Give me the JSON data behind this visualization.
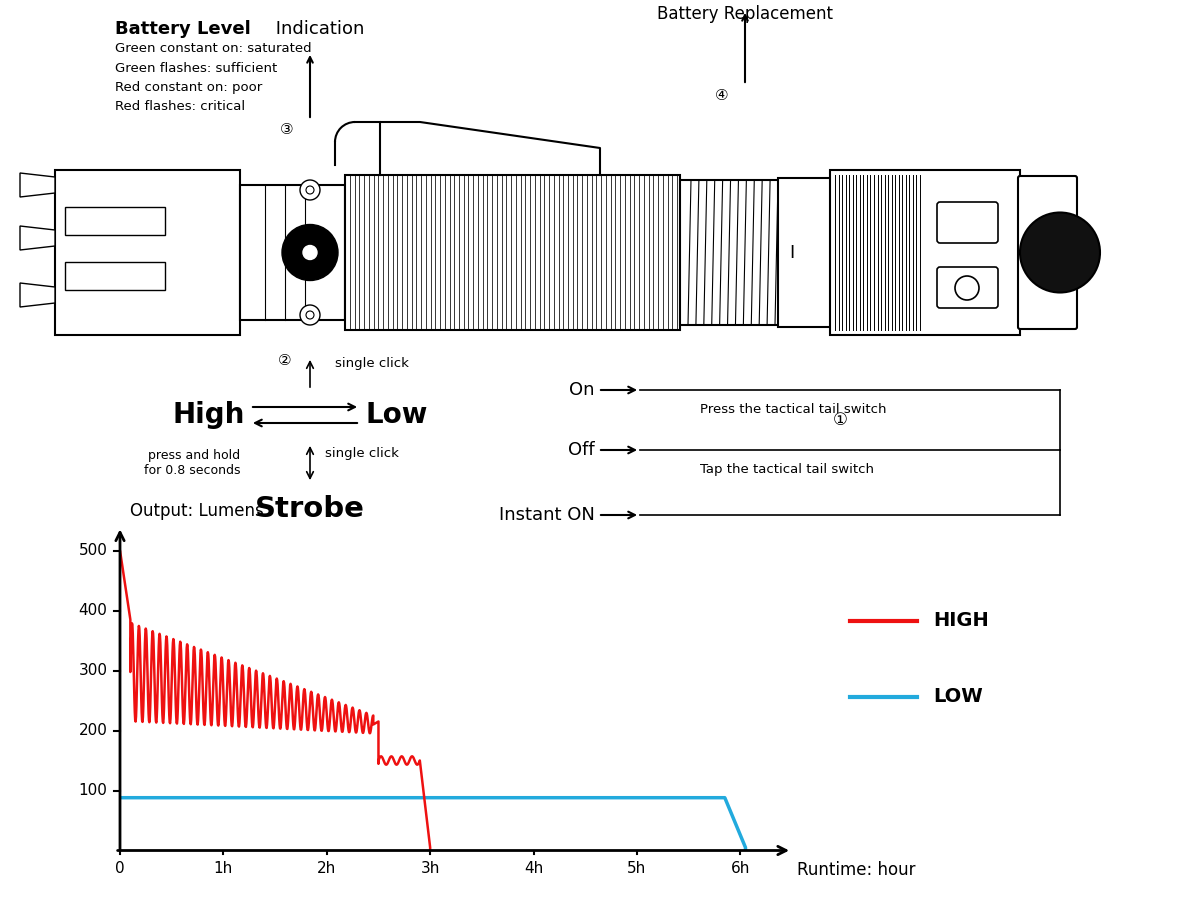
{
  "bg_color": "#ffffff",
  "chart_title_y": "Output: Lumens",
  "chart_title_x": "Runtime: hour",
  "high_color": "#ee1111",
  "low_color": "#22aadd",
  "high_label": "HIGH",
  "low_label": "LOW",
  "y_ticks": [
    100,
    200,
    300,
    400,
    500
  ],
  "x_ticks": [
    0,
    1,
    2,
    3,
    4,
    5,
    6
  ],
  "x_tick_labels": [
    "0",
    "1h",
    "2h",
    "3h",
    "4h",
    "5h",
    "6h"
  ],
  "ylim": [
    0,
    540
  ],
  "xlim": [
    0,
    6.5
  ],
  "battery_level_title_bold": "Battery Level",
  "battery_level_title_norm": " Indication",
  "battery_level_text": "Green constant on: saturated\nGreen flashes: sufficient\nRed constant on: poor\nRed flashes: critical",
  "battery_replacement_title": "Battery Replacement",
  "on_label": "On",
  "off_label": "Off",
  "instant_on_label": "Instant ON",
  "press_tactical": "Press the tactical tail switch",
  "tap_tactical": "Tap the tactical tail switch",
  "high_text": "High",
  "low_text": "Low",
  "strobe_text": "Strobe",
  "single_click_text": "single click",
  "press_hold_text": "press and hold\nfor 0.8 seconds",
  "circle_1": "①",
  "circle_2": "②",
  "circle_3": "③",
  "circle_4": "④"
}
